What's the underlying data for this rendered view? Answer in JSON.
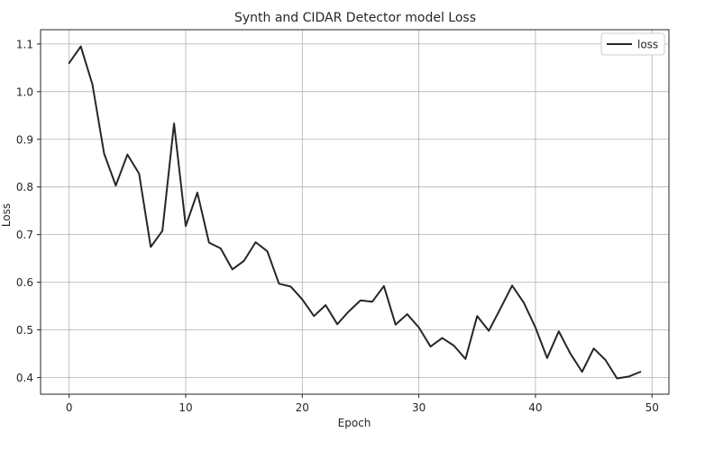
{
  "chart_data": {
    "type": "line",
    "title": "Synth and CIDAR Detector model Loss",
    "xlabel": "Epoch",
    "ylabel": "Loss",
    "xlim": [
      -2.45,
      51.45
    ],
    "ylim": [
      0.365,
      1.13
    ],
    "x_ticks": [
      0,
      10,
      20,
      30,
      40,
      50
    ],
    "x_tick_labels": [
      "0",
      "10",
      "20",
      "30",
      "40",
      "50"
    ],
    "y_ticks": [
      0.4,
      0.5,
      0.6,
      0.7,
      0.8,
      0.9,
      1.0,
      1.1
    ],
    "y_tick_labels": [
      "0.4",
      "0.5",
      "0.6",
      "0.7",
      "0.8",
      "0.9",
      "1.0",
      "1.1"
    ],
    "grid": true,
    "legend_position": "top-right",
    "series": [
      {
        "name": "loss",
        "color": "#262626",
        "x": [
          0,
          1,
          2,
          3,
          4,
          5,
          6,
          7,
          8,
          9,
          10,
          11,
          12,
          13,
          14,
          15,
          16,
          17,
          18,
          19,
          20,
          21,
          22,
          23,
          24,
          25,
          26,
          27,
          28,
          29,
          30,
          31,
          32,
          33,
          34,
          35,
          36,
          37,
          38,
          39,
          40,
          41,
          42,
          43,
          44,
          45,
          46,
          47,
          48,
          49
        ],
        "values": [
          1.06,
          1.095,
          1.015,
          0.87,
          0.803,
          0.868,
          0.828,
          0.674,
          0.708,
          0.933,
          0.718,
          0.788,
          0.683,
          0.671,
          0.627,
          0.645,
          0.684,
          0.665,
          0.597,
          0.591,
          0.564,
          0.529,
          0.552,
          0.512,
          0.539,
          0.562,
          0.559,
          0.592,
          0.511,
          0.533,
          0.505,
          0.465,
          0.483,
          0.467,
          0.439,
          0.529,
          0.498,
          0.545,
          0.593,
          0.557,
          0.505,
          0.441,
          0.497,
          0.45,
          0.412,
          0.461,
          0.437,
          0.398,
          0.402,
          0.412
        ]
      }
    ]
  }
}
